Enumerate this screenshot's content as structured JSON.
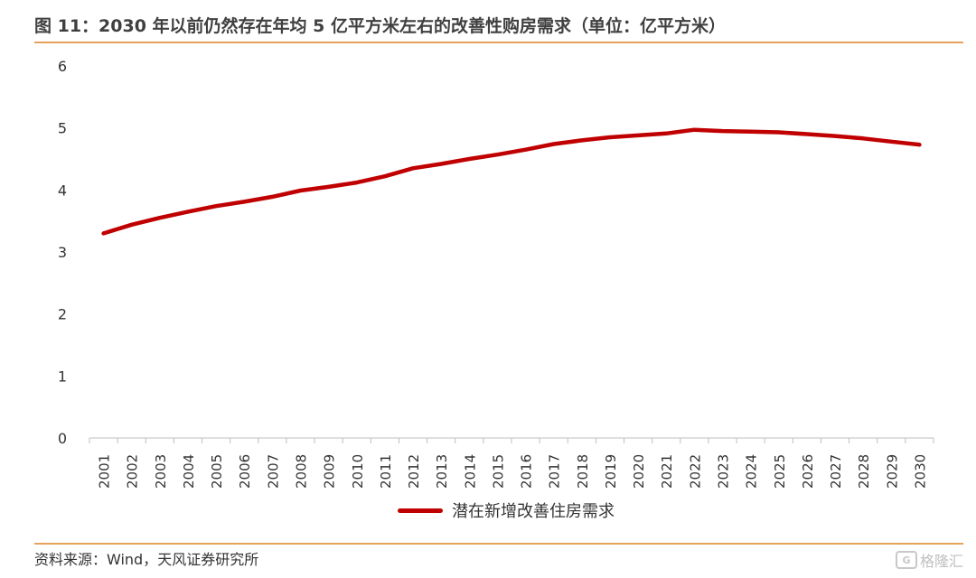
{
  "header": {
    "title": "图 11：2030 年以前仍然存在年均 5 亿平方米左右的改善性购房需求（单位：亿平方米）"
  },
  "footer": {
    "source": "资料来源：Wind，天风证券研究所"
  },
  "watermark": {
    "icon_text": "G",
    "text": "格隆汇"
  },
  "colors": {
    "series": "#C00000",
    "accent_rule": "#E8A15A"
  },
  "chart_data": {
    "type": "line",
    "title": "",
    "xlabel": "",
    "ylabel": "",
    "ylim": [
      0,
      6
    ],
    "yticks": [
      0,
      1,
      2,
      3,
      4,
      5,
      6
    ],
    "grid": false,
    "legend_position": "bottom",
    "categories": [
      "2001",
      "2002",
      "2003",
      "2004",
      "2005",
      "2006",
      "2007",
      "2008",
      "2009",
      "2010",
      "2011",
      "2012",
      "2013",
      "2014",
      "2015",
      "2016",
      "2017",
      "2018",
      "2019",
      "2020",
      "2021",
      "2022",
      "2023",
      "2024",
      "2025",
      "2026",
      "2027",
      "2028",
      "2029",
      "2030"
    ],
    "series": [
      {
        "name": "潜在新增改善住房需求",
        "color": "#C00000",
        "values": [
          3.3,
          3.44,
          3.55,
          3.65,
          3.74,
          3.81,
          3.89,
          3.99,
          4.05,
          4.12,
          4.22,
          4.35,
          4.42,
          4.5,
          4.57,
          4.65,
          4.74,
          4.8,
          4.85,
          4.88,
          4.91,
          4.97,
          4.95,
          4.94,
          4.93,
          4.9,
          4.87,
          4.83,
          4.78,
          4.73
        ]
      }
    ]
  }
}
